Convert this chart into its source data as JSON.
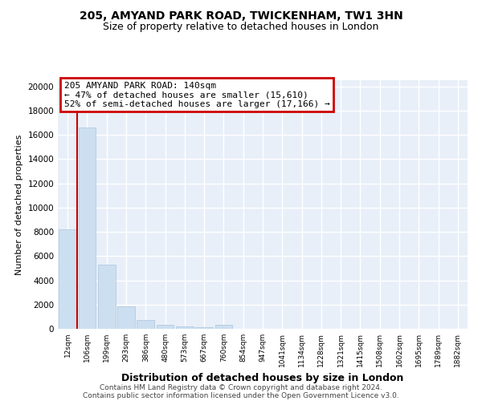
{
  "title": "205, AMYAND PARK ROAD, TWICKENHAM, TW1 3HN",
  "subtitle": "Size of property relative to detached houses in London",
  "xlabel": "Distribution of detached houses by size in London",
  "ylabel": "Number of detached properties",
  "bar_color": "#ccdff0",
  "bar_edge_color": "#aac4de",
  "bg_color": "#e8eff8",
  "grid_color": "#ffffff",
  "annotation_box_color": "#cc0000",
  "vline_color": "#cc0000",
  "vline_position": 1.5,
  "annotation_title": "205 AMYAND PARK ROAD: 140sqm",
  "annotation_line1": "← 47% of detached houses are smaller (15,610)",
  "annotation_line2": "52% of semi-detached houses are larger (17,166) →",
  "categories": [
    "12sqm",
    "106sqm",
    "199sqm",
    "293sqm",
    "386sqm",
    "480sqm",
    "573sqm",
    "667sqm",
    "760sqm",
    "854sqm",
    "947sqm",
    "1041sqm",
    "1134sqm",
    "1228sqm",
    "1321sqm",
    "1415sqm",
    "1508sqm",
    "1602sqm",
    "1695sqm",
    "1789sqm",
    "1882sqm"
  ],
  "values": [
    8200,
    16600,
    5300,
    1850,
    750,
    300,
    220,
    160,
    300,
    0,
    0,
    0,
    0,
    0,
    0,
    0,
    0,
    0,
    0,
    0,
    0
  ],
  "yticks": [
    0,
    2000,
    4000,
    6000,
    8000,
    10000,
    12000,
    14000,
    16000,
    18000,
    20000
  ],
  "ylim": [
    0,
    20500
  ],
  "footer1": "Contains HM Land Registry data © Crown copyright and database right 2024.",
  "footer2": "Contains public sector information licensed under the Open Government Licence v3.0."
}
